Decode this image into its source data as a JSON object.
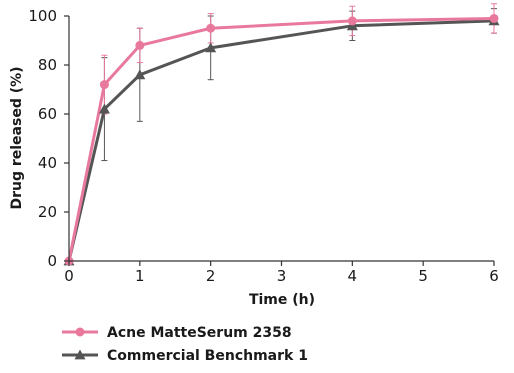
{
  "chart_data": {
    "type": "line",
    "title": "",
    "xlabel": "Time (h)",
    "ylabel": "Drug released (%)",
    "xlim": [
      0,
      6
    ],
    "ylim": [
      0,
      100
    ],
    "x_ticks": [
      0,
      1,
      2,
      3,
      4,
      5,
      6
    ],
    "y_ticks": [
      0,
      20,
      40,
      60,
      80,
      100
    ],
    "grid": false,
    "legend_position": "bottom-left",
    "x": [
      0,
      0.5,
      1,
      2,
      4,
      6
    ],
    "series": [
      {
        "name": "Acne MatteSerum 2358",
        "color": "#e8799d",
        "marker": "circle",
        "values": [
          0,
          72,
          88,
          95,
          98,
          99
        ],
        "error": [
          0,
          12,
          7,
          6,
          6,
          6
        ]
      },
      {
        "name": "Commercial Benchmark 1",
        "color": "#555555",
        "marker": "triangle",
        "values": [
          0,
          62,
          76,
          87,
          96,
          98
        ],
        "error": [
          0,
          21,
          19,
          13,
          6,
          5
        ]
      }
    ]
  }
}
